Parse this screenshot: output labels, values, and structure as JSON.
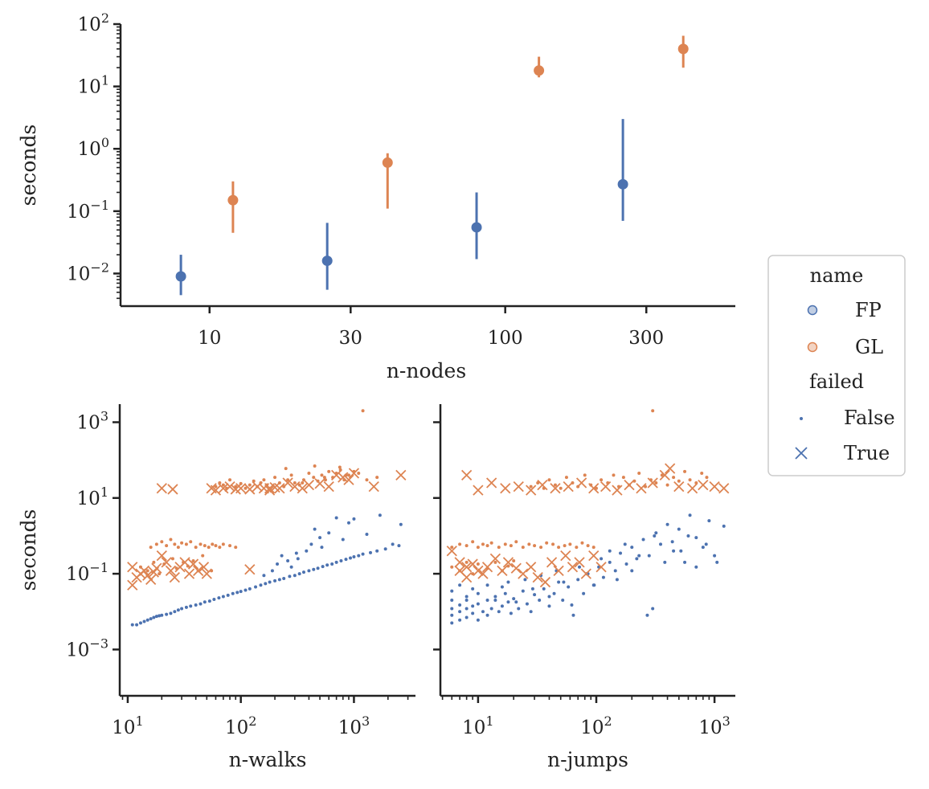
{
  "chart_data": [
    {
      "type": "scatter",
      "variant": "point-with-range",
      "xlabel": "n-nodes",
      "ylabel": "seconds",
      "xscale": "log",
      "yscale": "log",
      "xlim": [
        5,
        600
      ],
      "ylim": [
        0.003,
        100
      ],
      "xticks": [
        10,
        30,
        100,
        300
      ],
      "xtick_labels": [
        "10",
        "30",
        "100",
        "300"
      ],
      "yticks": [
        0.01,
        0.1,
        1,
        10,
        100
      ],
      "ytick_labels": [
        [
          "10",
          "−2"
        ],
        [
          "10",
          "−1"
        ],
        [
          "10",
          "0"
        ],
        [
          "10",
          "1"
        ],
        [
          "10",
          "2"
        ]
      ],
      "series": [
        {
          "name": "FP",
          "color": "#4c72b0",
          "points": [
            {
              "x": 8,
              "y": 0.009,
              "low": 0.0045,
              "high": 0.02
            },
            {
              "x": 25,
              "y": 0.016,
              "low": 0.0055,
              "high": 0.065
            },
            {
              "x": 80,
              "y": 0.055,
              "low": 0.017,
              "high": 0.2
            },
            {
              "x": 250,
              "y": 0.27,
              "low": 0.07,
              "high": 3.0
            }
          ]
        },
        {
          "name": "GL",
          "color": "#dd8452",
          "points": [
            {
              "x": 12,
              "y": 0.15,
              "low": 0.045,
              "high": 0.3
            },
            {
              "x": 40,
              "y": 0.6,
              "low": 0.11,
              "high": 0.85
            },
            {
              "x": 130,
              "y": 18,
              "low": 14,
              "high": 30
            },
            {
              "x": 400,
              "y": 40,
              "low": 20,
              "high": 65
            }
          ]
        }
      ]
    },
    {
      "type": "scatter",
      "xlabel": "n-walks",
      "ylabel": "seconds",
      "xscale": "log",
      "yscale": "log",
      "xlim": [
        8.5,
        3500
      ],
      "ylim": [
        6e-05,
        3000
      ],
      "xticks": [
        10,
        100,
        1000
      ],
      "xtick_labels": [
        [
          "10",
          "1"
        ],
        [
          "10",
          "2"
        ],
        [
          "10",
          "3"
        ]
      ],
      "yticks": [
        0.001,
        0.1,
        10,
        1000
      ],
      "ytick_labels": [
        [
          "10",
          "−3"
        ],
        [
          "10",
          "−1"
        ],
        [
          "10",
          "1"
        ],
        [
          "10",
          "3"
        ]
      ],
      "series": [
        {
          "name": "FP",
          "failed": "False",
          "marker": "dot",
          "color": "#4c72b0",
          "x": [
            11,
            12,
            13,
            14,
            15,
            16,
            17,
            18,
            19,
            20,
            22,
            24,
            26,
            28,
            30,
            33,
            36,
            40,
            44,
            48,
            53,
            58,
            64,
            70,
            77,
            85,
            93,
            100,
            110,
            120,
            135,
            150,
            165,
            180,
            200,
            220,
            240,
            270,
            300,
            330,
            360,
            400,
            440,
            480,
            530,
            580,
            640,
            700,
            770,
            850,
            930,
            1000,
            1100,
            1200,
            1400,
            1600,
            1900,
            2500,
            160,
            190,
            230,
            280,
            320,
            380,
            450,
            520,
            600,
            700,
            800,
            1000,
            1300,
            1700,
            2200,
            2600,
            210,
            260,
            310,
            420,
            500,
            900
          ],
          "y": [
            0.0045,
            0.0045,
            0.005,
            0.0055,
            0.006,
            0.0065,
            0.007,
            0.0075,
            0.0078,
            0.008,
            0.0085,
            0.009,
            0.01,
            0.011,
            0.012,
            0.013,
            0.014,
            0.015,
            0.016,
            0.018,
            0.019,
            0.021,
            0.023,
            0.025,
            0.027,
            0.03,
            0.032,
            0.034,
            0.037,
            0.04,
            0.045,
            0.05,
            0.055,
            0.06,
            0.065,
            0.07,
            0.075,
            0.085,
            0.09,
            0.1,
            0.11,
            0.12,
            0.13,
            0.14,
            0.155,
            0.17,
            0.18,
            0.2,
            0.22,
            0.24,
            0.26,
            0.28,
            0.3,
            0.33,
            0.36,
            0.4,
            0.45,
            0.55,
            0.09,
            0.12,
            0.3,
            0.15,
            0.25,
            0.4,
            1.5,
            0.5,
            1.2,
            3.0,
            0.8,
            2.8,
            1.1,
            3.5,
            0.6,
            2.0,
            0.18,
            0.22,
            0.35,
            0.6,
            0.9,
            2.2
          ]
        },
        {
          "name": "GL",
          "failed": "False",
          "marker": "dot",
          "color": "#dd8452",
          "x": [
            16,
            18,
            20,
            22,
            24,
            26,
            28,
            30,
            33,
            36,
            40,
            44,
            48,
            52,
            56,
            60,
            65,
            70,
            80,
            90,
            13,
            15,
            17,
            19,
            21,
            25,
            27,
            31,
            34,
            38,
            42,
            46,
            55,
            60,
            65,
            70,
            75,
            80,
            90,
            100,
            110,
            120,
            130,
            140,
            150,
            160,
            170,
            180,
            200,
            220,
            240,
            260,
            280,
            300,
            330,
            360,
            400,
            440,
            480,
            520,
            560,
            600,
            650,
            700,
            760,
            820,
            900,
            1000,
            1100,
            1300,
            1600,
            1200,
            250,
            350,
            450,
            550,
            750,
            850
          ],
          "y": [
            0.5,
            0.6,
            0.7,
            0.55,
            0.8,
            0.6,
            0.5,
            0.65,
            0.6,
            0.7,
            0.5,
            0.6,
            0.55,
            0.5,
            0.6,
            0.55,
            0.5,
            0.6,
            0.55,
            0.5,
            0.15,
            0.12,
            0.2,
            0.1,
            0.18,
            0.25,
            0.14,
            0.2,
            0.16,
            0.22,
            0.12,
            0.3,
            0.12,
            20,
            25,
            22,
            18,
            30,
            20,
            24,
            18,
            22,
            28,
            20,
            25,
            30,
            22,
            18,
            35,
            25,
            20,
            30,
            40,
            25,
            22,
            30,
            45,
            35,
            28,
            40,
            30,
            50,
            35,
            45,
            55,
            30,
            40,
            50,
            45,
            30,
            35,
            2000,
            60,
            25,
            70,
            35,
            65,
            40
          ]
        },
        {
          "name": "GL",
          "failed": "True",
          "marker": "x",
          "color": "#dd8452",
          "x": [
            11,
            11,
            12,
            13,
            14,
            15,
            16,
            17,
            18,
            20,
            22,
            24,
            26,
            29,
            32,
            35,
            38,
            42,
            47,
            50,
            20,
            25,
            55,
            60,
            70,
            80,
            90,
            100,
            120,
            140,
            160,
            180,
            200,
            220,
            260,
            300,
            350,
            400,
            500,
            600,
            700,
            800,
            900,
            1000,
            1500,
            2600,
            120,
            180
          ],
          "y": [
            0.15,
            0.05,
            0.08,
            0.1,
            0.12,
            0.09,
            0.07,
            0.11,
            0.14,
            0.3,
            0.2,
            0.12,
            0.08,
            0.15,
            0.2,
            0.1,
            0.18,
            0.12,
            0.15,
            0.1,
            18,
            17,
            18,
            16,
            18,
            20,
            17,
            18,
            17,
            20,
            18,
            16,
            19,
            18,
            25,
            20,
            18,
            22,
            24,
            20,
            40,
            35,
            30,
            45,
            20,
            40,
            0.13,
            18
          ]
        }
      ]
    },
    {
      "type": "scatter",
      "xlabel": "n-jumps",
      "xscale": "log",
      "yscale": "log",
      "xlim": [
        4.8,
        1500
      ],
      "ylim": [
        6e-05,
        3000
      ],
      "xticks": [
        10,
        100,
        1000
      ],
      "xtick_labels": [
        [
          "10",
          "1"
        ],
        [
          "10",
          "2"
        ],
        [
          "10",
          "3"
        ]
      ],
      "series": [
        {
          "name": "FP",
          "failed": "False",
          "marker": "dot",
          "color": "#4c72b0",
          "x": [
            6,
            6,
            6,
            6,
            7,
            7,
            7,
            8,
            8,
            8,
            9,
            9,
            10,
            10,
            11,
            12,
            12,
            13,
            14,
            15,
            16,
            17,
            18,
            19,
            20,
            22,
            24,
            26,
            28,
            30,
            33,
            36,
            40,
            44,
            48,
            52,
            58,
            64,
            70,
            78,
            85,
            95,
            105,
            115,
            130,
            145,
            160,
            180,
            200,
            220,
            250,
            280,
            310,
            350,
            400,
            450,
            500,
            560,
            620,
            700,
            800,
            900,
            1000,
            1200,
            6,
            7,
            8,
            9,
            10,
            12,
            14,
            16,
            18,
            21,
            25,
            29,
            34,
            40,
            46,
            53,
            62,
            72,
            83,
            96,
            110,
            130,
            150,
            175,
            200,
            230,
            270,
            320,
            380,
            440,
            520,
            600,
            700,
            850,
            1050,
            300
          ],
          "y": [
            0.005,
            0.008,
            0.012,
            0.02,
            0.006,
            0.01,
            0.015,
            0.007,
            0.012,
            0.02,
            0.009,
            0.014,
            0.006,
            0.016,
            0.01,
            0.008,
            0.02,
            0.012,
            0.025,
            0.01,
            0.014,
            0.03,
            0.018,
            0.009,
            0.022,
            0.012,
            0.035,
            0.016,
            0.01,
            0.028,
            0.02,
            0.04,
            0.014,
            0.03,
            0.06,
            0.02,
            0.045,
            0.008,
            0.07,
            0.03,
            0.1,
            0.05,
            0.15,
            0.08,
            0.2,
            0.12,
            0.35,
            0.18,
            0.5,
            0.25,
            0.8,
            0.3,
            1.0,
            0.6,
            2.0,
            0.4,
            1.5,
            0.2,
            3.5,
            0.9,
            0.5,
            2.5,
            0.3,
            1.8,
            0.035,
            0.05,
            0.025,
            0.04,
            0.03,
            0.05,
            0.02,
            0.045,
            0.06,
            0.018,
            0.07,
            0.04,
            0.09,
            0.025,
            0.12,
            0.06,
            0.015,
            0.15,
            0.1,
            0.05,
            0.25,
            0.4,
            0.07,
            0.6,
            0.12,
            0.3,
            0.008,
            1.2,
            0.2,
            0.7,
            0.4,
            1.0,
            0.15,
            0.6,
            0.2,
            0.012
          ]
        },
        {
          "name": "GL",
          "failed": "False",
          "marker": "dot",
          "color": "#dd8452",
          "x": [
            6,
            7,
            8,
            9,
            10,
            11,
            12,
            13,
            15,
            17,
            19,
            21,
            24,
            27,
            30,
            34,
            38,
            43,
            48,
            54,
            60,
            68,
            76,
            85,
            95,
            6,
            7,
            8,
            9,
            10,
            12,
            14,
            16,
            18,
            20,
            28,
            32,
            36,
            40,
            45,
            50,
            56,
            63,
            70,
            80,
            90,
            100,
            110,
            125,
            140,
            155,
            170,
            190,
            210,
            230,
            260,
            290,
            320,
            360,
            400,
            450,
            500,
            560,
            620,
            700,
            780,
            860,
            300
          ],
          "y": [
            0.5,
            0.6,
            0.55,
            0.7,
            0.5,
            0.6,
            0.55,
            0.65,
            0.5,
            0.6,
            0.55,
            0.7,
            0.5,
            0.6,
            0.55,
            0.5,
            0.65,
            0.6,
            0.5,
            0.55,
            0.6,
            0.5,
            0.65,
            0.55,
            0.5,
            0.15,
            0.12,
            0.2,
            0.1,
            0.18,
            0.14,
            0.2,
            0.12,
            0.16,
            0.22,
            20,
            25,
            18,
            30,
            22,
            18,
            35,
            25,
            20,
            40,
            22,
            18,
            30,
            25,
            40,
            20,
            35,
            22,
            28,
            45,
            20,
            30,
            25,
            40,
            22,
            35,
            28,
            50,
            30,
            25,
            45,
            35,
            2000
          ]
        },
        {
          "name": "GL",
          "failed": "True",
          "marker": "x",
          "color": "#dd8452",
          "x": [
            6,
            7,
            7,
            8,
            8,
            9,
            10,
            11,
            12,
            14,
            16,
            18,
            21,
            24,
            28,
            32,
            37,
            42,
            48,
            55,
            63,
            72,
            82,
            95,
            110,
            8,
            10,
            13,
            17,
            22,
            28,
            35,
            45,
            58,
            75,
            95,
            120,
            150,
            190,
            240,
            300,
            380,
            420,
            500,
            650,
            800,
            1000,
            1200
          ],
          "y": [
            0.4,
            0.12,
            0.2,
            0.08,
            0.15,
            0.18,
            0.12,
            0.1,
            0.15,
            0.25,
            0.12,
            0.2,
            0.14,
            0.1,
            0.15,
            0.08,
            0.06,
            0.2,
            0.12,
            0.3,
            0.15,
            0.2,
            0.1,
            0.3,
            0.15,
            40,
            16,
            25,
            18,
            20,
            16,
            22,
            18,
            20,
            25,
            18,
            20,
            16,
            22,
            18,
            25,
            40,
            60,
            20,
            18,
            22,
            20,
            18
          ]
        }
      ]
    }
  ],
  "legend": {
    "placement": "right",
    "hue_title": "name",
    "hue_items": [
      {
        "label": "FP",
        "color": "#4c72b0"
      },
      {
        "label": "GL",
        "color": "#dd8452"
      }
    ],
    "style_title": "failed",
    "style_items": [
      {
        "label": "False",
        "marker": "dot"
      },
      {
        "label": "True",
        "marker": "x"
      }
    ],
    "marker_color": "#4c72b0"
  }
}
